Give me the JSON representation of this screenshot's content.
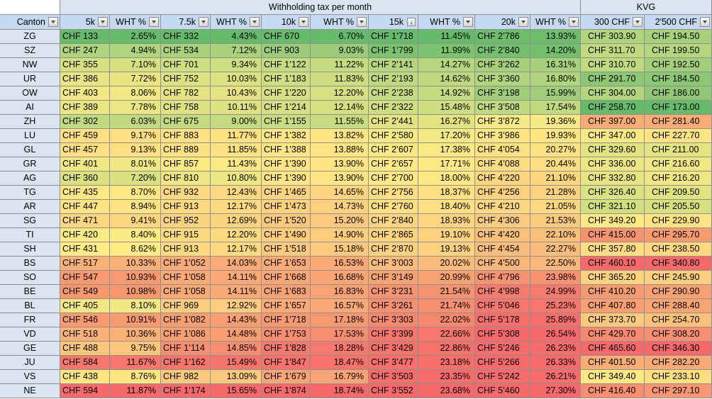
{
  "title_main": "Withholding tax per month",
  "title_kvg": "KVG",
  "headers": [
    "Canton",
    "5k",
    "WHT %",
    "7.5k",
    "WHT %",
    "10k",
    "WHT %",
    "15k",
    "WHT %",
    "20k",
    "WHT %",
    "300 CHF",
    "2'500 CHF"
  ],
  "sorted_column_index": 7,
  "rows": [
    {
      "canton": "ZG",
      "vals": [
        "CHF 133",
        "2.65%",
        "CHF 332",
        "4.43%",
        "CHF 670",
        "6.70%",
        "CHF 1’718",
        "11.45%",
        "CHF 2’786",
        "13.93%",
        "CHF 303.90",
        "CHF 194.50"
      ],
      "colors": [
        "#66bb6a",
        "#66bb6a",
        "#66bb6a",
        "#66bb6a",
        "#66bb6a",
        "#66bb6a",
        "#66bb6a",
        "#66bb6a",
        "#6dbe6a",
        "#6dbe6a",
        "#b0d57d",
        "#a7d07b"
      ]
    },
    {
      "canton": "SZ",
      "vals": [
        "CHF 247",
        "4.94%",
        "CHF 534",
        "7.12%",
        "CHF 903",
        "9.03%",
        "CHF 1’799",
        "11.99%",
        "CHF 2’840",
        "14.20%",
        "CHF 311.70",
        "CHF 199.50"
      ],
      "colors": [
        "#aed47c",
        "#aed47c",
        "#a9d27b",
        "#a9d27b",
        "#9ccc79",
        "#9ccc79",
        "#7cc36f",
        "#7cc36f",
        "#72c06c",
        "#72c06c",
        "#c1da7f",
        "#b5d67d"
      ]
    },
    {
      "canton": "NW",
      "vals": [
        "CHF 355",
        "7.10%",
        "CHF 701",
        "9.34%",
        "CHF 1’1 22",
        "11.22%",
        "CHF 2’141",
        "14.27%",
        "CHF 3’262",
        "16.31%",
        "CHF 310.70",
        "CHF 192.50"
      ],
      "colors": [
        "#d6e080",
        "#d6e080",
        "#cfde80",
        "#cfde80",
        "#c4db7f",
        "#c4db7f",
        "#b6d67d",
        "#b6d67d",
        "#a7d07b",
        "#a7d07b",
        "#bfda7f",
        "#a3cf7a"
      ]
    },
    {
      "canton": "UR",
      "vals": [
        "CHF 386",
        "7.72%",
        "CHF 752",
        "10.03%",
        "CHF 1’183",
        "11.83%",
        "CHF 2’193",
        "14.62%",
        "CHF 3’360",
        "16.80%",
        "CHF 291.70",
        "CHF 184.50"
      ],
      "colors": [
        "#e8e582",
        "#e8e582",
        "#dde281",
        "#dde281",
        "#d0de80",
        "#d0de80",
        "#bed97e",
        "#bed97e",
        "#b1d57d",
        "#b1d57d",
        "#8cc774",
        "#8cc774"
      ]
    },
    {
      "canton": "OW",
      "vals": [
        "CHF 403",
        "8.06%",
        "CHF 782",
        "10.43%",
        "CHF 1’220",
        "12.20%",
        "CHF 2’238",
        "14.92%",
        "CHF 3’198",
        "15.99%",
        "CHF 304.00",
        "CHF 186.00"
      ],
      "colors": [
        "#f1e883",
        "#f1e883",
        "#e6e482",
        "#e6e482",
        "#d6e080",
        "#d6e080",
        "#c4db7f",
        "#c4db7f",
        "#9fcd7a",
        "#9fcd7a",
        "#b2d57d",
        "#90c875"
      ]
    },
    {
      "canton": "AI",
      "vals": [
        "CHF 389",
        "7.78%",
        "CHF 758",
        "10.11%",
        "CHF 1’214",
        "12.14%",
        "CHF 2’322",
        "15.48%",
        "CHF 3’508",
        "17.54%",
        "CHF 258.70",
        "CHF 173.00"
      ],
      "colors": [
        "#eae682",
        "#eae682",
        "#dfe281",
        "#dfe281",
        "#d5e080",
        "#d5e080",
        "#cfde80",
        "#cfde80",
        "#c2da7f",
        "#c2da7f",
        "#66bb6a",
        "#66bb6a"
      ]
    },
    {
      "canton": "ZH",
      "vals": [
        "CHF 302",
        "6.03%",
        "CHF 675",
        "9.00%",
        "CHF 1’155",
        "11.55%",
        "CHF 2’441",
        "16.27%",
        "CHF 3’872",
        "19.36%",
        "CHF 397.00",
        "CHF 281.40"
      ],
      "colors": [
        "#c2da7f",
        "#c2da7f",
        "#c6db7f",
        "#c6db7f",
        "#c9dc7f",
        "#c9dc7f",
        "#e3e381",
        "#e3e381",
        "#f6ea84",
        "#f6ea84",
        "#f9ad75",
        "#f9ad75"
      ]
    },
    {
      "canton": "LU",
      "vals": [
        "CHF 459",
        "9.17%",
        "CHF 883",
        "11.77%",
        "CHF 1’382",
        "13.82%",
        "CHF 2’580",
        "17.20%",
        "CHF 3’986",
        "19.93%",
        "CHF 347.00",
        "CHF 227.70"
      ],
      "colors": [
        "#fedf81",
        "#fedf81",
        "#fee282",
        "#fee282",
        "#fee683",
        "#fee683",
        "#f6ea84",
        "#f6ea84",
        "#fee683",
        "#fee683",
        "#f9e984",
        "#fce484"
      ]
    },
    {
      "canton": "GL",
      "vals": [
        "CHF 457",
        "9.13%",
        "CHF 889",
        "11.85%",
        "CHF 1’388",
        "13.88%",
        "CHF 2’607",
        "17.38%",
        "CHF 4’054",
        "20.27%",
        "CHF 329.60",
        "CHF 211.00"
      ],
      "colors": [
        "#fee082",
        "#fee082",
        "#fee182",
        "#fee182",
        "#fee583",
        "#fee583",
        "#f9ea84",
        "#f9ea84",
        "#fee282",
        "#fee282",
        "#e1e381",
        "#e4e482"
      ]
    },
    {
      "canton": "GR",
      "vals": [
        "CHF 401",
        "8.01%",
        "CHF 857",
        "11.43%",
        "CHF 1’390",
        "13.90%",
        "CHF 2’657",
        "17.71%",
        "CHF 4’088",
        "20.44%",
        "CHF 336.00",
        "CHF 216.60"
      ],
      "colors": [
        "#f0e883",
        "#f0e883",
        "#fbea84",
        "#fbea84",
        "#fee583",
        "#fee583",
        "#feea84",
        "#feea84",
        "#fede81",
        "#fede81",
        "#ece683",
        "#efe783"
      ]
    },
    {
      "canton": "AG",
      "vals": [
        "CHF 360",
        "7.20%",
        "CHF 810",
        "10.80%",
        "CHF 1’390",
        "13.90%",
        "CHF 2’700",
        "18.00%",
        "CHF 4’220",
        "21.10%",
        "CHF 332.80",
        "CHF 216.20"
      ],
      "colors": [
        "#d9e181",
        "#d9e181",
        "#ede783",
        "#ede783",
        "#fee583",
        "#fee583",
        "#fee884",
        "#fee884",
        "#fdd680",
        "#fdd680",
        "#e6e582",
        "#eee783"
      ]
    },
    {
      "canton": "TG",
      "vals": [
        "CHF 435",
        "8.70%",
        "CHF 932",
        "12.43%",
        "CHF 1’465",
        "14.65%",
        "CHF 2’756",
        "18.37%",
        "CHF 4’256",
        "21.28%",
        "CHF 326.40",
        "CHF 209.50"
      ],
      "colors": [
        "#fee884",
        "#fee884",
        "#fed980",
        "#fed980",
        "#fed47f",
        "#fed47f",
        "#fee082",
        "#fee082",
        "#fcd27f",
        "#fcd27f",
        "#dbe281",
        "#e1e381"
      ]
    },
    {
      "canton": "AR",
      "vals": [
        "CHF 447",
        "8.94%",
        "CHF 913",
        "12.17%",
        "CHF 1’473",
        "14.73%",
        "CHF 2’760",
        "18.40%",
        "CHF 4’210",
        "21.05%",
        "CHF 321.10",
        "CHF 205.50"
      ],
      "colors": [
        "#fee383",
        "#fee383",
        "#fedb81",
        "#fedb81",
        "#fed17f",
        "#fed17f",
        "#fedf82",
        "#fedf82",
        "#fdd880",
        "#fdd880",
        "#d2df80",
        "#d6e080"
      ]
    },
    {
      "canton": "SG",
      "vals": [
        "CHF 471",
        "9.41%",
        "CHF 952",
        "12.69%",
        "CHF 1’520",
        "15.20%",
        "CHF 2’840",
        "18.93%",
        "CHF 4’306",
        "21.53%",
        "CHF 349.20",
        "CHF 229.90"
      ],
      "colors": [
        "#fdd680",
        "#fdd680",
        "#fcd47f",
        "#fcd47f",
        "#fcc97d",
        "#fcc97d",
        "#fdd580",
        "#fdd580",
        "#fbcc7e",
        "#fbcc7e",
        "#fde984",
        "#fee383"
      ]
    },
    {
      "canton": "TI",
      "vals": [
        "CHF 420",
        "8.40%",
        "CHF 915",
        "12.20%",
        "CHF 1’490",
        "14.90%",
        "CHF 2’865",
        "19.10%",
        "CHF 4’420",
        "22.10%",
        "CHF 415.00",
        "CHF 295.70"
      ],
      "colors": [
        "#faeb84",
        "#faeb84",
        "#fedb81",
        "#fedb81",
        "#fecd7e",
        "#fecd7e",
        "#fdd37f",
        "#fdd37f",
        "#fbc17b",
        "#fbc17b",
        "#f8936f",
        "#f89b71"
      ]
    },
    {
      "canton": "SH",
      "vals": [
        "CHF 431",
        "8.62%",
        "CHF 913",
        "12.17%",
        "CHF 1’518",
        "15.18%",
        "CHF 2’870",
        "19.13%",
        "CHF 4’454",
        "22.27%",
        "CHF 357.80",
        "CHF 238.50"
      ],
      "colors": [
        "#ffec84",
        "#ffec84",
        "#fedb81",
        "#fedb81",
        "#fdc97d",
        "#fdc97d",
        "#fdd27f",
        "#fdd27f",
        "#fbbd7b",
        "#fbbd7b",
        "#fedc81",
        "#fed880"
      ]
    },
    {
      "canton": "BS",
      "vals": [
        "CHF 517",
        "10.33%",
        "CHF 1’052",
        "14.03%",
        "CHF 1’653",
        "16.53%",
        "CHF 3’003",
        "20.02%",
        "CHF 4’500",
        "22.50%",
        "CHF 460.10",
        "CHF 340.80"
      ],
      "colors": [
        "#fbb178",
        "#fbb178",
        "#fbab76",
        "#fbab76",
        "#fbaa76",
        "#fbaa76",
        "#fbbb7b",
        "#fbbb7b",
        "#fbb87a",
        "#fbb87a",
        "#f8696b",
        "#f8696b"
      ]
    },
    {
      "canton": "SO",
      "vals": [
        "CHF 547",
        "10.93%",
        "CHF 1’058",
        "14.11%",
        "CHF 1’668",
        "16.68%",
        "CHF 3’149",
        "20.99%",
        "CHF 4’796",
        "23.98%",
        "CHF 365.20",
        "CHF 245.90"
      ],
      "colors": [
        "#f9996f",
        "#f9996f",
        "#fba975",
        "#fba975",
        "#fba775",
        "#fba775",
        "#f9a373",
        "#f9a373",
        "#f99371",
        "#f99371",
        "#fdd37f",
        "#fcd07e"
      ]
    },
    {
      "canton": "BE",
      "vals": [
        "CHF 549",
        "10.98%",
        "CHF 1’058",
        "14.11%",
        "CHF 1’683",
        "16.83%",
        "CHF 3’231",
        "21.54%",
        "CHF 4’998",
        "24.99%",
        "CHF 410.20",
        "CHF 290.90"
      ],
      "colors": [
        "#f9976f",
        "#f9976f",
        "#fba975",
        "#fba975",
        "#fba374",
        "#fba374",
        "#f89470",
        "#f89470",
        "#f87b6d",
        "#f87b6d",
        "#f99b71",
        "#f9a173"
      ]
    },
    {
      "canton": "BL",
      "vals": [
        "CHF 405",
        "8.10%",
        "CHF 969",
        "12.92%",
        "CHF 1’657",
        "16.57%",
        "CHF 3’261",
        "21.74%",
        "CHF 5’046",
        "25.23%",
        "CHF 407.80",
        "CHF 288.40"
      ],
      "colors": [
        "#f2e883",
        "#f2e883",
        "#fccd7e",
        "#fccd7e",
        "#fba975",
        "#fba975",
        "#f88f70",
        "#f88f70",
        "#f8776c",
        "#f8776c",
        "#f99f72",
        "#f9a473"
      ]
    },
    {
      "canton": "FR",
      "vals": [
        "CHF 546",
        "10.91%",
        "CHF 1’082",
        "14.43%",
        "CHF 1’718",
        "17.18%",
        "CHF 3’303",
        "22.02%",
        "CHF 5’178",
        "25.89%",
        "CHF 373.70",
        "CHF 254.70"
      ],
      "colors": [
        "#f99a70",
        "#f99a70",
        "#fa9f72",
        "#fa9f72",
        "#f89971",
        "#f89971",
        "#f8876e",
        "#f8876e",
        "#f86e6b",
        "#f86e6b",
        "#fcc97d",
        "#fcc27c"
      ]
    },
    {
      "canton": "VD",
      "vals": [
        "CHF 518",
        "10.36%",
        "CHF 1’086",
        "14.48%",
        "CHF 1’753",
        "17.53%",
        "CHF 3’399",
        "22.66%",
        "CHF 5’308",
        "26.54%",
        "CHF 429.70",
        "CHF 308.20"
      ],
      "colors": [
        "#fbb077",
        "#fbb077",
        "#fa9d71",
        "#fa9d71",
        "#f88e6f",
        "#f88e6f",
        "#f8776c",
        "#f8776c",
        "#f8696b",
        "#f8696b",
        "#f88a6f",
        "#f88f70"
      ]
    },
    {
      "canton": "GE",
      "vals": [
        "CHF 488",
        "9.75%",
        "CHF 1’114",
        "14.85%",
        "CHF 1’828",
        "18.28%",
        "CHF 3’429",
        "22.86%",
        "CHF 5’246",
        "26.23%",
        "CHF 465.60",
        "CHF 346.30"
      ],
      "colors": [
        "#fcc77d",
        "#fcc77d",
        "#f98f70",
        "#f98f70",
        "#f8796d",
        "#f8796d",
        "#f8726c",
        "#f8726c",
        "#f86c6b",
        "#f86c6b",
        "#f8696b",
        "#f8696b"
      ]
    },
    {
      "canton": "JU",
      "vals": [
        "CHF 584",
        "11.67%",
        "CHF 1’162",
        "15.49%",
        "CHF 1’847",
        "18.47%",
        "CHF 3’477",
        "23.18%",
        "CHF 5’266",
        "26.33%",
        "CHF 401.50",
        "CHF 282.20"
      ],
      "colors": [
        "#f8776c",
        "#f8776c",
        "#f8756c",
        "#f8756c",
        "#f8736c",
        "#f8736c",
        "#f8706b",
        "#f8706b",
        "#f86b6b",
        "#f86b6b",
        "#fbad76",
        "#f9ab76"
      ]
    },
    {
      "canton": "VS",
      "vals": [
        "CHF 438",
        "8.76%",
        "CHF 982",
        "13.09%",
        "CHF 1’679",
        "16.79%",
        "CHF 3’503",
        "23.35%",
        "CHF 5’242",
        "26.21%",
        "CHF 349.40",
        "CHF 233.10"
      ],
      "colors": [
        "#fee683",
        "#fee683",
        "#fcc97d",
        "#fcc97d",
        "#fba475",
        "#fba475",
        "#f86c6b",
        "#f86c6b",
        "#f86d6b",
        "#f86d6b",
        "#fde984",
        "#fddf82"
      ]
    },
    {
      "canton": "NE",
      "vals": [
        "CHF 594",
        "11.87%",
        "CHF 1’174",
        "15.65%",
        "CHF 1’874",
        "18.74%",
        "CHF 3’552",
        "23.68%",
        "CHF 5’460",
        "27.30%",
        "CHF 416.40",
        "CHF 297.10"
      ],
      "colors": [
        "#f8696b",
        "#f8696b",
        "#f8696b",
        "#f8696b",
        "#f8696b",
        "#f8696b",
        "#f8696b",
        "#f8696b",
        "#f8696b",
        "#f8696b",
        "#f98f70",
        "#f89771"
      ]
    }
  ]
}
